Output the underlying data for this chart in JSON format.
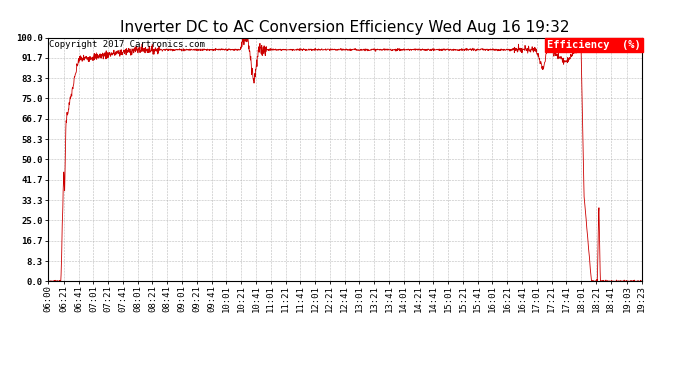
{
  "title": "Inverter DC to AC Conversion Efficiency Wed Aug 16 19:32",
  "copyright": "Copyright 2017 Cartronics.com",
  "legend_label": "Efficiency  (%)",
  "line_color": "#cc0000",
  "background_color": "#ffffff",
  "plot_bg_color": "#ffffff",
  "grid_color": "#aaaaaa",
  "yticks": [
    0.0,
    8.3,
    16.7,
    25.0,
    33.3,
    41.7,
    50.0,
    58.3,
    66.7,
    75.0,
    83.3,
    91.7,
    100.0
  ],
  "ylim": [
    0,
    100
  ],
  "xtick_labels": [
    "06:00",
    "06:21",
    "06:41",
    "07:01",
    "07:21",
    "07:41",
    "08:01",
    "08:21",
    "08:41",
    "09:01",
    "09:21",
    "09:41",
    "10:01",
    "10:21",
    "10:41",
    "11:01",
    "11:21",
    "11:41",
    "12:01",
    "12:21",
    "12:41",
    "13:01",
    "13:21",
    "13:41",
    "14:01",
    "14:21",
    "14:41",
    "15:01",
    "15:21",
    "15:41",
    "16:01",
    "16:21",
    "16:41",
    "17:01",
    "17:21",
    "17:41",
    "18:01",
    "18:21",
    "18:41",
    "19:03",
    "19:23"
  ],
  "title_fontsize": 11,
  "copyright_fontsize": 6.5,
  "tick_fontsize": 6.5,
  "legend_fontsize": 7.5
}
